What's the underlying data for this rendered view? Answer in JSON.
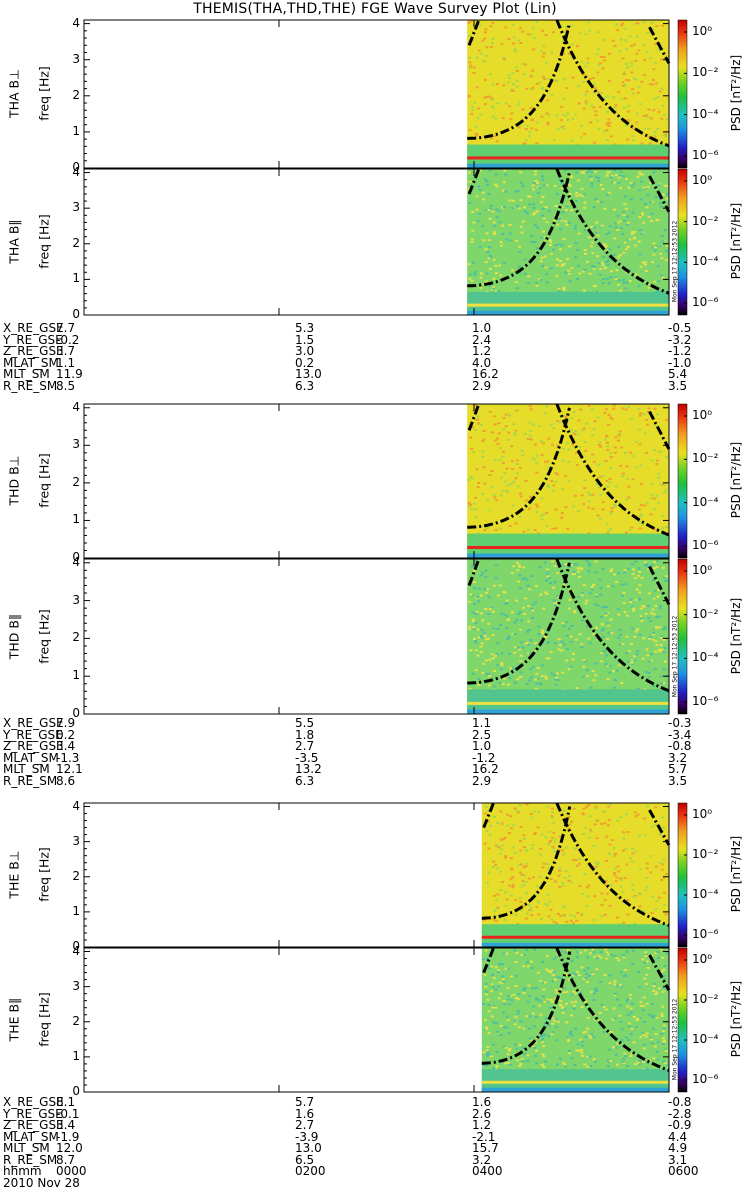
{
  "title": "THEMIS(THA,THD,THE) FGE Wave Survey Plot (Lin)",
  "colors": {
    "background": "#ffffff",
    "spectro_main": "#e6dd2a",
    "spectro_noise": "#7fd66b",
    "spectro_low": "#2fa3d6",
    "line_red": "#e8251c",
    "curve": "#000000"
  },
  "chart_data": {
    "type": "heatmap",
    "xlabel": "hhmm",
    "date": "2010 Nov 28",
    "xlim": [
      "0000",
      "0600"
    ],
    "x_ticks": [
      "0000",
      "0200",
      "0400",
      "0600"
    ],
    "ylabel": "freq [Hz]",
    "ylim": [
      0,
      4.1
    ],
    "y_ticks": [
      "0",
      "1",
      "2",
      "3",
      "4"
    ],
    "colorbar": {
      "title": "PSD [nT²/Hz]",
      "scale": "log",
      "labels": [
        "10⁰",
        "10⁻²",
        "10⁻⁴",
        "10⁻⁶"
      ],
      "stamp": "Mon Sep 17 12:12:53 2012"
    },
    "data_start_hour": [
      3.93,
      3.93,
      4.08
    ],
    "panels": [
      {
        "probe": "THA",
        "component": "THA B⊥"
      },
      {
        "probe": "THA",
        "component": "THA B∥"
      },
      {
        "probe": "THD",
        "component": "THD B⊥"
      },
      {
        "probe": "THD",
        "component": "THD B∥"
      },
      {
        "probe": "THE",
        "component": "THE B⊥"
      },
      {
        "probe": "THE",
        "component": "THE B∥"
      }
    ],
    "ephemeris_labels": [
      "X_RE_GSE",
      "Y_RE_GSE",
      "Z_RE_GSE",
      "MLAT_SM",
      "MLT_SM",
      "R_RE_SM"
    ],
    "ephemeris": [
      {
        "probe": "THA",
        "values": [
          [
            "7.7",
            "5.3",
            "1.0",
            "-0.5"
          ],
          [
            "-0.2",
            "1.5",
            "2.4",
            "-3.2"
          ],
          [
            "3.7",
            "3.0",
            "1.2",
            "-1.2"
          ],
          [
            "1.1",
            "0.2",
            "4.0",
            "-1.0"
          ],
          [
            "11.9",
            "13.0",
            "16.2",
            "5.4"
          ],
          [
            "8.5",
            "6.3",
            "2.9",
            "3.5"
          ]
        ]
      },
      {
        "probe": "THD",
        "values": [
          [
            "7.9",
            "5.5",
            "1.1",
            "-0.3"
          ],
          [
            "0.2",
            "1.8",
            "2.5",
            "-3.4"
          ],
          [
            "3.4",
            "2.7",
            "1.0",
            "-0.8"
          ],
          [
            "-1.3",
            "-3.5",
            "-1.2",
            "3.2"
          ],
          [
            "12.1",
            "13.2",
            "16.2",
            "5.7"
          ],
          [
            "8.6",
            "6.3",
            "2.9",
            "3.5"
          ]
        ]
      },
      {
        "probe": "THE",
        "values": [
          [
            "8.1",
            "5.7",
            "1.6",
            "-0.8"
          ],
          [
            "-0.1",
            "1.6",
            "2.6",
            "-2.8"
          ],
          [
            "3.4",
            "2.7",
            "1.2",
            "-0.9"
          ],
          [
            "-1.9",
            "-3.9",
            "-2.1",
            "4.4"
          ],
          [
            "12.0",
            "13.0",
            "15.7",
            "4.9"
          ],
          [
            "8.7",
            "6.5",
            "3.2",
            "3.1"
          ]
        ]
      }
    ]
  }
}
